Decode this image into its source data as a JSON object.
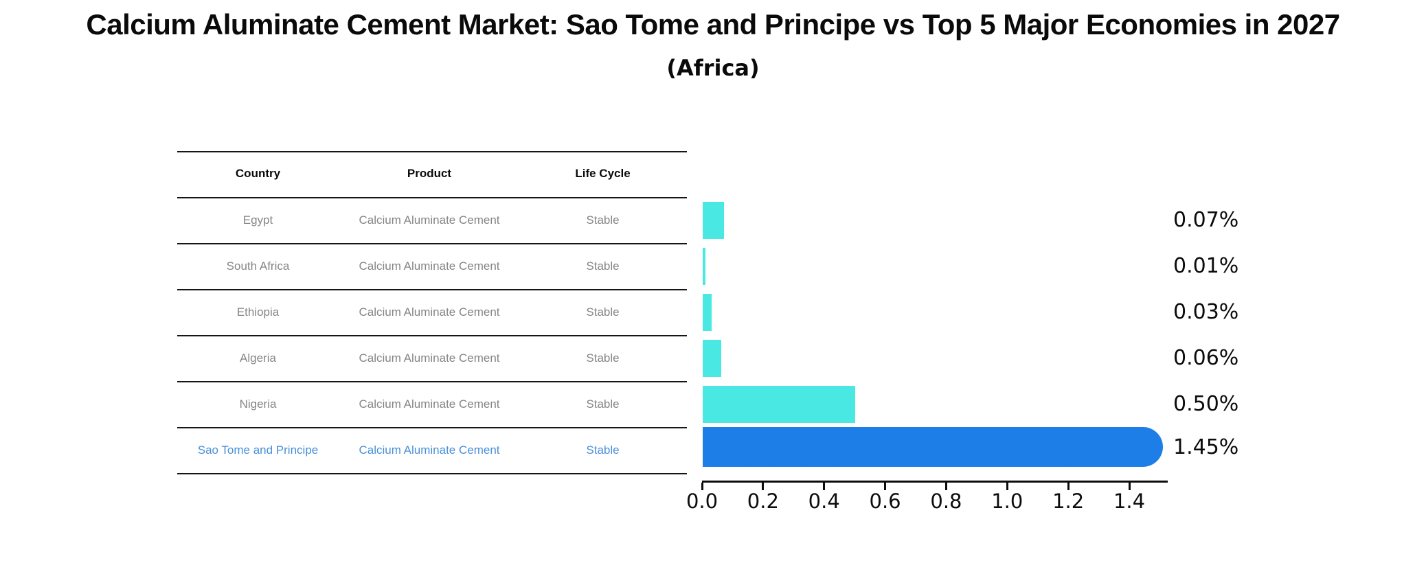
{
  "title": "Calcium Aluminate Cement Market: Sao Tome and Principe vs Top 5 Major Economies in 2027",
  "subtitle": "(Africa)",
  "table": {
    "headers": [
      "Country",
      "Product",
      "Life Cycle"
    ],
    "rows": [
      {
        "country": "Egypt",
        "product": "Calcium Aluminate Cement",
        "life_cycle": "Stable",
        "highlighted": false
      },
      {
        "country": "South Africa",
        "product": "Calcium Aluminate Cement",
        "life_cycle": "Stable",
        "highlighted": false
      },
      {
        "country": "Ethiopia",
        "product": "Calcium Aluminate Cement",
        "life_cycle": "Stable",
        "highlighted": false
      },
      {
        "country": "Algeria",
        "product": "Calcium Aluminate Cement",
        "life_cycle": "Stable",
        "highlighted": false
      },
      {
        "country": "Nigeria",
        "product": "Calcium Aluminate Cement",
        "life_cycle": "Stable",
        "highlighted": false
      },
      {
        "country": "Sao Tome and Principe",
        "product": "Calcium Aluminate Cement",
        "life_cycle": "Stable",
        "highlighted": true
      }
    ]
  },
  "chart_data": {
    "type": "bar",
    "orientation": "horizontal",
    "categories": [
      "Egypt",
      "South Africa",
      "Ethiopia",
      "Algeria",
      "Nigeria",
      "Sao Tome and Principe"
    ],
    "values": [
      0.07,
      0.01,
      0.03,
      0.06,
      0.5,
      1.45
    ],
    "value_labels": [
      "0.07%",
      "0.01%",
      "0.03%",
      "0.06%",
      "0.50%",
      "1.45%"
    ],
    "x_ticks": [
      "0.0",
      "0.2",
      "0.4",
      "0.6",
      "0.8",
      "1.0",
      "1.2",
      "1.4"
    ],
    "x_tick_values": [
      0.0,
      0.2,
      0.4,
      0.6,
      0.8,
      1.0,
      1.2,
      1.4
    ],
    "xlim": [
      0.0,
      1.525
    ],
    "grid": false,
    "legend": null,
    "bar_color": "#4AE8E2",
    "highlight_color": "#1E7EE8",
    "highlight_index": 5,
    "highlight_style": "dotted-edge-rounded-end"
  },
  "colors": {
    "background": "#FFFFFF",
    "row_text": "#858585",
    "highlight_text": "#4A90D8",
    "axis": "#0C0C0C"
  }
}
